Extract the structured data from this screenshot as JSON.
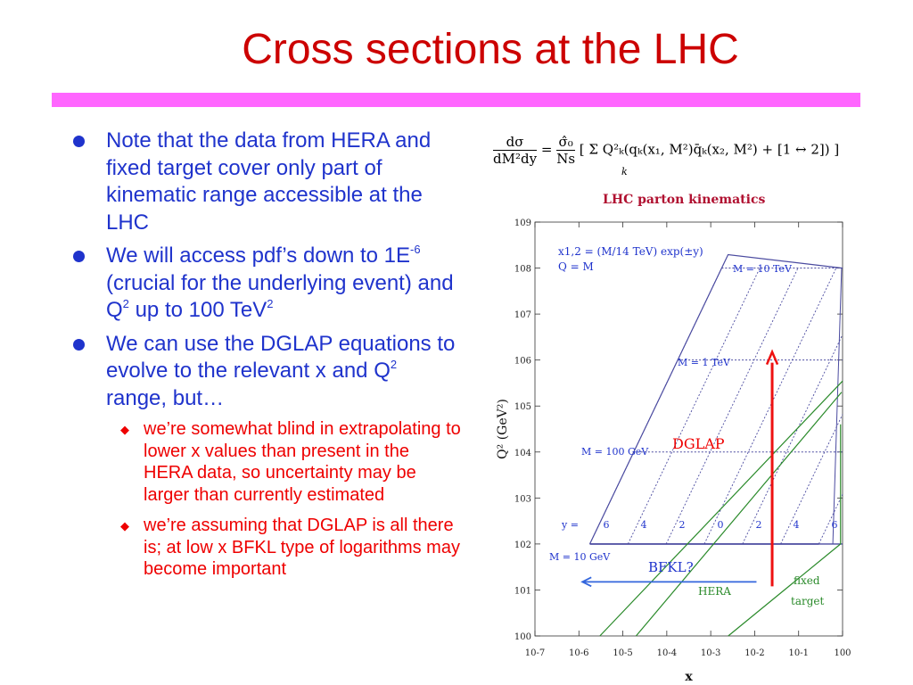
{
  "slide": {
    "title": "Cross sections at the LHC",
    "bullets": [
      {
        "text": "Note that the data from HERA and fixed target cover only part of kinematic range accessible at the LHC"
      },
      {
        "pre": "We will access pdf’s down to 1E",
        "sup1": "-6",
        "mid": " (crucial for the underlying event) and Q",
        "sup2": "2",
        "mid2": " up to 100 TeV",
        "sup3": "2"
      },
      {
        "pre": "We can use the DGLAP equations to evolve to the relevant x and Q",
        "sup1": "2",
        "mid": " range, but…"
      }
    ],
    "subbullets": [
      "we’re somewhat blind in extrapolating to lower x values than present in the HERA data, so uncertainty may be larger than currently estimated",
      "we’re assuming that DGLAP is all there is; at low x BFKL type of logarithms may become important"
    ]
  },
  "formula": {
    "lhs_num": "dσ",
    "lhs_den": "dM²dy",
    "rhs_num": "σ̂₀",
    "rhs_den": "Ns",
    "body": "[ Σ Q²ₖ(qₖ(x₁, M²)q̄ₖ(x₂, M²) + [1 ↔ 2]) ]",
    "sum_index": "k"
  },
  "chart_data": {
    "type": "line",
    "title": "LHC parton kinematics",
    "xlabel": "x",
    "ylabel": "Q² (GeV²)",
    "x_scale": "log",
    "y_scale": "log",
    "xlim": [
      1e-07,
      1
    ],
    "ylim": [
      1,
      1000000000.0
    ],
    "x_tick_labels": [
      "10-7",
      "10-6",
      "10-5",
      "10-4",
      "10-3",
      "10-2",
      "10-1",
      "100"
    ],
    "y_tick_labels": [
      "100",
      "101",
      "102",
      "103",
      "104",
      "105",
      "106",
      "107",
      "108",
      "109"
    ],
    "legend_text": [
      "x1,2 = (M/14 TeV) exp(±y)",
      "Q = M"
    ],
    "mass_lines": [
      {
        "label": "M = 10 TeV",
        "Q2": 100000000.0
      },
      {
        "label": "M = 1 TeV",
        "Q2": 1000000.0
      },
      {
        "label": "M = 100 GeV",
        "Q2": 10000.0
      },
      {
        "label": "M = 10 GeV",
        "Q2": 100.0
      }
    ],
    "rapidity_label": "y =",
    "rapidity_values": [
      "6",
      "4",
      "2",
      "0",
      "2",
      "4",
      "6"
    ],
    "region_labels": [
      "HERA",
      "fixed",
      "target"
    ],
    "annotations": [
      "DGLAP",
      "BFKL?"
    ],
    "colors": {
      "boundary": "#4b4ba0",
      "hera": "#2a8a2a",
      "arrow_up": "#ee1111",
      "arrow_left": "#3366dd",
      "dglap_text": "#ee0000",
      "bfkl_text": "#1f33cc"
    }
  }
}
